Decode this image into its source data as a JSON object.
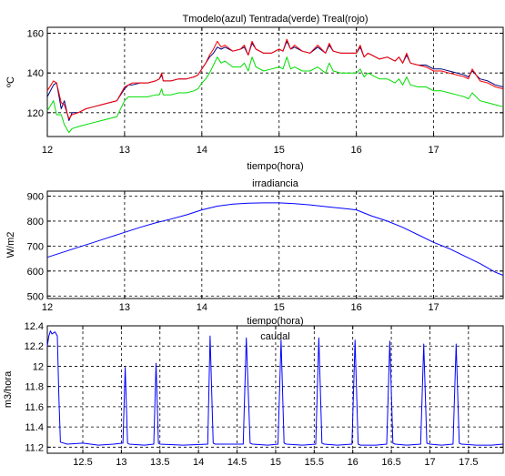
{
  "chart_data": [
    {
      "type": "line",
      "title": "Tmodelo(azul) Tentrada(verde) Treal(rojo)",
      "xlabel": "tiempo(hora)",
      "ylabel": "ºC",
      "xlim": [
        12,
        17.9
      ],
      "ylim": [
        108,
        163
      ],
      "xticks": [
        "12",
        "13",
        "14",
        "15",
        "16",
        "17"
      ],
      "yticks": [
        "120",
        "140",
        "160"
      ],
      "grid": true,
      "series": [
        {
          "color": "#000080",
          "x": [
            12.0,
            12.08,
            12.12,
            12.18,
            12.22,
            12.28,
            12.32,
            12.4,
            12.5,
            12.6,
            12.7,
            12.8,
            12.9,
            13.0,
            13.05,
            13.1,
            13.2,
            13.3,
            13.4,
            13.45,
            13.48,
            13.5,
            13.6,
            13.7,
            13.8,
            13.9,
            13.95,
            14.0,
            14.05,
            14.1,
            14.15,
            14.2,
            14.25,
            14.3,
            14.4,
            14.5,
            14.55,
            14.6,
            14.65,
            14.7,
            14.8,
            14.9,
            15.0,
            15.05,
            15.1,
            15.15,
            15.2,
            15.3,
            15.4,
            15.5,
            15.6,
            15.65,
            15.7,
            15.8,
            15.9,
            16.0,
            16.05,
            16.1,
            16.15,
            16.2,
            16.3,
            16.4,
            16.5,
            16.55,
            16.6,
            16.65,
            16.7,
            16.8,
            16.9,
            17.0,
            17.1,
            17.2,
            17.3,
            17.4,
            17.45,
            17.5,
            17.6,
            17.7,
            17.8,
            17.9
          ],
          "y": [
            128,
            134,
            135,
            122,
            126,
            116,
            120,
            120,
            122,
            123,
            124,
            125,
            126,
            132,
            134,
            134,
            135,
            135,
            136,
            137,
            139,
            136,
            136,
            137,
            137,
            138,
            139,
            142,
            145,
            148,
            150,
            153,
            152,
            153,
            151,
            152,
            153,
            149,
            155,
            152,
            150,
            150,
            152,
            151,
            156,
            152,
            153,
            151,
            150,
            153,
            150,
            154,
            151,
            150,
            150,
            150,
            153,
            148,
            150,
            149,
            147,
            148,
            146,
            148,
            145,
            149,
            145,
            144,
            144,
            142,
            142,
            141,
            140,
            139,
            138,
            141,
            137,
            136,
            134,
            133
          ]
        },
        {
          "color": "#00dd00",
          "x": [
            12.0,
            12.08,
            12.12,
            12.18,
            12.22,
            12.28,
            12.32,
            12.4,
            12.5,
            12.6,
            12.7,
            12.8,
            12.9,
            13.0,
            13.05,
            13.1,
            13.2,
            13.3,
            13.4,
            13.45,
            13.48,
            13.5,
            13.6,
            13.7,
            13.8,
            13.9,
            13.95,
            14.0,
            14.05,
            14.1,
            14.15,
            14.2,
            14.25,
            14.3,
            14.4,
            14.5,
            14.55,
            14.6,
            14.65,
            14.7,
            14.8,
            14.9,
            15.0,
            15.05,
            15.1,
            15.15,
            15.2,
            15.3,
            15.4,
            15.5,
            15.6,
            15.65,
            15.7,
            15.8,
            15.9,
            16.0,
            16.05,
            16.1,
            16.15,
            16.2,
            16.3,
            16.4,
            16.5,
            16.55,
            16.6,
            16.65,
            16.7,
            16.8,
            16.9,
            17.0,
            17.1,
            17.2,
            17.3,
            17.4,
            17.45,
            17.5,
            17.6,
            17.7,
            17.8,
            17.9
          ],
          "y": [
            121,
            126,
            119,
            119,
            114,
            110,
            112,
            113,
            114,
            115,
            116,
            117,
            118,
            126,
            128,
            128,
            128,
            128,
            129,
            129,
            132,
            129,
            129,
            130,
            130,
            131,
            132,
            135,
            137,
            140,
            144,
            148,
            145,
            146,
            143,
            143,
            145,
            141,
            148,
            143,
            141,
            142,
            143,
            142,
            148,
            142,
            143,
            141,
            141,
            143,
            140,
            145,
            141,
            140,
            140,
            140,
            142,
            138,
            140,
            139,
            137,
            137,
            135,
            137,
            134,
            138,
            134,
            133,
            133,
            131,
            131,
            130,
            129,
            128,
            127,
            130,
            126,
            125,
            124,
            123
          ]
        },
        {
          "color": "#ff0000",
          "x": [
            12.0,
            12.08,
            12.12,
            12.18,
            12.22,
            12.28,
            12.32,
            12.4,
            12.5,
            12.6,
            12.7,
            12.8,
            12.9,
            13.0,
            13.05,
            13.1,
            13.2,
            13.3,
            13.4,
            13.45,
            13.48,
            13.5,
            13.6,
            13.7,
            13.8,
            13.9,
            13.95,
            14.0,
            14.05,
            14.1,
            14.15,
            14.2,
            14.25,
            14.3,
            14.4,
            14.5,
            14.55,
            14.6,
            14.65,
            14.7,
            14.8,
            14.9,
            15.0,
            15.05,
            15.1,
            15.15,
            15.2,
            15.3,
            15.4,
            15.5,
            15.6,
            15.65,
            15.7,
            15.8,
            15.9,
            16.0,
            16.05,
            16.1,
            16.15,
            16.2,
            16.3,
            16.4,
            16.5,
            16.55,
            16.6,
            16.65,
            16.7,
            16.8,
            16.9,
            17.0,
            17.1,
            17.2,
            17.3,
            17.4,
            17.45,
            17.5,
            17.6,
            17.7,
            17.8,
            17.9
          ],
          "y": [
            131,
            136,
            135,
            125,
            124,
            117,
            119,
            120,
            122,
            123,
            124,
            125,
            126,
            133,
            134,
            135,
            135,
            135,
            136,
            137,
            140,
            136,
            136,
            137,
            137,
            138,
            139,
            142,
            145,
            149,
            152,
            156,
            153,
            154,
            151,
            152,
            154,
            149,
            156,
            152,
            150,
            150,
            152,
            151,
            157,
            152,
            154,
            151,
            150,
            154,
            150,
            155,
            151,
            150,
            150,
            150,
            154,
            148,
            150,
            149,
            147,
            148,
            146,
            148,
            145,
            150,
            145,
            144,
            143,
            141,
            141,
            140,
            139,
            138,
            137,
            142,
            136,
            135,
            133,
            132
          ]
        }
      ]
    },
    {
      "type": "line",
      "title": "irradiancia",
      "xlabel": "tiempo(hora)",
      "ylabel": "W/m2",
      "xlim": [
        12,
        17.9
      ],
      "ylim": [
        490,
        920
      ],
      "xticks": [
        "12",
        "13",
        "14",
        "15",
        "16",
        "17"
      ],
      "yticks": [
        "500",
        "600",
        "700",
        "800",
        "900"
      ],
      "grid": true,
      "series": [
        {
          "color": "#0000ff",
          "x": [
            12.0,
            12.2,
            12.4,
            12.6,
            12.8,
            13.0,
            13.2,
            13.4,
            13.6,
            13.8,
            14.0,
            14.2,
            14.4,
            14.6,
            14.8,
            15.0,
            15.2,
            15.4,
            15.6,
            15.8,
            16.0,
            16.2,
            16.4,
            16.6,
            16.8,
            17.0,
            17.2,
            17.4,
            17.6,
            17.8,
            17.9
          ],
          "y": [
            655,
            675,
            695,
            715,
            735,
            755,
            775,
            793,
            808,
            825,
            845,
            860,
            868,
            872,
            873,
            873,
            870,
            865,
            858,
            852,
            845,
            820,
            800,
            775,
            745,
            715,
            690,
            660,
            630,
            595,
            583
          ]
        }
      ]
    },
    {
      "type": "line",
      "title": "caudal",
      "xlabel": "",
      "ylabel": "m3/hora",
      "xlim": [
        12.04,
        17.95
      ],
      "ylim": [
        11.14,
        12.4
      ],
      "xticks": [
        "12.5",
        "13",
        "13.5",
        "14",
        "14.5",
        "15",
        "15.5",
        "16",
        "16.5",
        "17",
        "17.5"
      ],
      "yticks": [
        "11.2",
        "11.4",
        "11.6",
        "11.8",
        "12",
        "12.2",
        "12.4"
      ],
      "grid": true,
      "series": [
        {
          "color": "#0000ff",
          "x": [
            12.04,
            12.06,
            12.08,
            12.1,
            12.14,
            12.17,
            12.19,
            12.21,
            12.3,
            12.5,
            12.7,
            12.9,
            13.02,
            13.05,
            13.08,
            13.1,
            13.3,
            13.42,
            13.45,
            13.48,
            13.5,
            13.8,
            14.12,
            14.15,
            14.19,
            14.22,
            14.4,
            14.58,
            14.62,
            14.67,
            14.7,
            14.9,
            15.03,
            15.07,
            15.11,
            15.14,
            15.35,
            15.52,
            15.56,
            15.6,
            15.63,
            15.8,
            15.99,
            16.03,
            16.07,
            16.1,
            16.3,
            16.44,
            16.48,
            16.52,
            16.55,
            16.7,
            16.88,
            16.92,
            16.96,
            17.0,
            17.15,
            17.3,
            17.34,
            17.38,
            17.41,
            17.6,
            17.8,
            17.95
          ],
          "y": [
            12.2,
            12.3,
            12.35,
            12.32,
            12.34,
            12.3,
            11.7,
            11.25,
            11.23,
            11.24,
            11.22,
            11.23,
            11.24,
            11.99,
            11.24,
            11.23,
            11.22,
            11.23,
            12.03,
            11.24,
            11.23,
            11.22,
            11.23,
            12.3,
            11.24,
            11.23,
            11.23,
            11.23,
            12.28,
            11.24,
            11.23,
            11.22,
            11.23,
            12.26,
            11.24,
            11.23,
            11.22,
            11.23,
            12.28,
            11.24,
            11.23,
            11.22,
            11.23,
            12.26,
            11.23,
            11.22,
            11.22,
            11.23,
            12.25,
            11.24,
            11.23,
            11.22,
            11.23,
            12.22,
            11.24,
            11.23,
            11.22,
            11.23,
            12.22,
            11.24,
            11.23,
            11.22,
            11.22,
            11.23
          ]
        }
      ]
    }
  ]
}
